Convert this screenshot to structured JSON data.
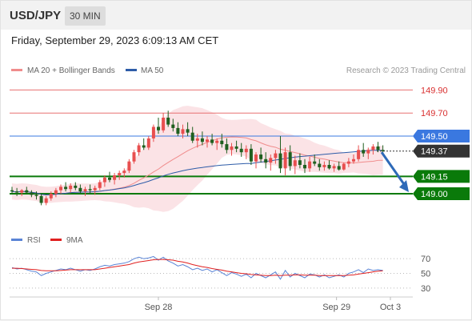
{
  "header": {
    "symbol": "USD/JPY",
    "interval": "30 MIN"
  },
  "timestamp": "Friday, September 29, 2023 6:09:13 AM CET",
  "legend": {
    "ma20_label": "MA 20 + Bollinger Bands",
    "ma50_label": "MA 50",
    "credit": "Research © 2023 Trading Central"
  },
  "colors": {
    "ma20": "#f08c8c",
    "ma50": "#2e5ca8",
    "band": "#fadadd",
    "up": "#e84f4f",
    "down": "#1f5f1f",
    "pivot": "#e87070",
    "resistance_blue": "#3a78e0",
    "support_green": "#0a7a0a",
    "arrow": "#2e6ab8",
    "rsi": "#5a84d6",
    "rsi_ma": "#e02020"
  },
  "chart_data": [
    {
      "type": "candlestick",
      "ylim": [
        148.75,
        150.0
      ],
      "x_ticks": [
        "Sep 28",
        "Sep 29",
        "Oct 3"
      ],
      "price_levels": [
        {
          "value": 149.9,
          "label": "149.90",
          "kind": "pivot"
        },
        {
          "value": 149.7,
          "label": "149.70",
          "kind": "pivot"
        },
        {
          "value": 149.5,
          "label": "149.50",
          "kind": "resistance"
        },
        {
          "value": 149.15,
          "label": "149.15",
          "kind": "support"
        },
        {
          "value": 149.0,
          "label": "149.00",
          "kind": "support"
        }
      ],
      "last_price": {
        "value": 149.37,
        "label": "149.37"
      },
      "forecast_target": 149.0,
      "candles": [
        [
          149.03,
          149.06,
          149.0,
          149.02
        ],
        [
          149.02,
          149.05,
          148.98,
          149.01
        ],
        [
          149.01,
          149.04,
          148.98,
          149.03
        ],
        [
          149.03,
          149.06,
          149.0,
          149.01
        ],
        [
          149.01,
          149.03,
          148.97,
          148.99
        ],
        [
          148.99,
          149.02,
          148.95,
          148.98
        ],
        [
          148.98,
          149.0,
          148.9,
          148.92
        ],
        [
          148.92,
          148.98,
          148.9,
          148.96
        ],
        [
          148.96,
          149.02,
          148.94,
          149.0
        ],
        [
          149.0,
          149.05,
          148.97,
          149.03
        ],
        [
          149.03,
          149.08,
          149.0,
          149.06
        ],
        [
          149.06,
          149.1,
          149.02,
          149.04
        ],
        [
          149.04,
          149.09,
          149.01,
          149.07
        ],
        [
          149.07,
          149.1,
          149.03,
          149.05
        ],
        [
          149.05,
          149.08,
          149.0,
          149.02
        ],
        [
          149.02,
          149.06,
          148.98,
          149.04
        ],
        [
          149.04,
          149.08,
          149.0,
          149.03
        ],
        [
          149.03,
          149.07,
          148.99,
          149.05
        ],
        [
          149.05,
          149.12,
          149.03,
          149.1
        ],
        [
          149.1,
          149.16,
          149.06,
          149.14
        ],
        [
          149.14,
          149.19,
          149.1,
          149.12
        ],
        [
          149.12,
          149.18,
          149.08,
          149.16
        ],
        [
          149.16,
          149.2,
          149.12,
          149.18
        ],
        [
          149.18,
          149.22,
          149.14,
          149.2
        ],
        [
          149.2,
          149.3,
          149.18,
          149.28
        ],
        [
          149.28,
          149.38,
          149.26,
          149.36
        ],
        [
          149.36,
          149.44,
          149.33,
          149.42
        ],
        [
          149.42,
          149.48,
          149.38,
          149.4
        ],
        [
          149.4,
          149.5,
          149.38,
          149.48
        ],
        [
          149.48,
          149.6,
          149.45,
          149.58
        ],
        [
          149.58,
          149.66,
          149.52,
          149.55
        ],
        [
          149.55,
          149.7,
          149.53,
          149.66
        ],
        [
          149.66,
          149.72,
          149.58,
          149.6
        ],
        [
          149.6,
          149.65,
          149.54,
          149.57
        ],
        [
          149.57,
          149.62,
          149.5,
          149.52
        ],
        [
          149.52,
          149.6,
          149.48,
          149.56
        ],
        [
          149.56,
          149.62,
          149.5,
          149.53
        ],
        [
          149.53,
          149.58,
          149.44,
          149.46
        ],
        [
          149.46,
          149.52,
          149.4,
          149.48
        ],
        [
          149.48,
          149.54,
          149.42,
          149.45
        ],
        [
          149.45,
          149.5,
          149.4,
          149.47
        ],
        [
          149.47,
          149.52,
          149.42,
          149.44
        ],
        [
          149.44,
          149.48,
          149.38,
          149.46
        ],
        [
          149.46,
          149.52,
          149.4,
          149.43
        ],
        [
          149.43,
          149.48,
          149.35,
          149.38
        ],
        [
          149.38,
          149.44,
          149.33,
          149.41
        ],
        [
          149.41,
          149.46,
          149.36,
          149.39
        ],
        [
          149.39,
          149.44,
          149.32,
          149.36
        ],
        [
          149.36,
          149.42,
          149.3,
          149.39
        ],
        [
          149.39,
          149.43,
          149.25,
          149.28
        ],
        [
          149.28,
          149.36,
          149.22,
          149.34
        ],
        [
          149.34,
          149.4,
          149.27,
          149.3
        ],
        [
          149.3,
          149.36,
          149.22,
          149.27
        ],
        [
          149.27,
          149.34,
          149.2,
          149.31
        ],
        [
          149.31,
          149.38,
          149.26,
          149.35
        ],
        [
          149.35,
          149.5,
          149.18,
          149.22
        ],
        [
          149.22,
          149.4,
          149.16,
          149.36
        ],
        [
          149.36,
          149.42,
          149.2,
          149.24
        ],
        [
          149.24,
          149.33,
          149.17,
          149.29
        ],
        [
          149.29,
          149.35,
          149.22,
          149.25
        ],
        [
          149.25,
          149.3,
          149.18,
          149.22
        ],
        [
          149.22,
          149.32,
          149.19,
          149.28
        ],
        [
          149.28,
          149.34,
          149.24,
          149.26
        ],
        [
          149.26,
          149.3,
          149.2,
          149.23
        ],
        [
          149.23,
          149.28,
          149.2,
          149.25
        ],
        [
          149.25,
          149.29,
          149.21,
          149.22
        ],
        [
          149.22,
          149.26,
          149.19,
          149.24
        ],
        [
          149.24,
          149.28,
          149.2,
          149.21
        ],
        [
          149.21,
          149.27,
          149.2,
          149.26
        ],
        [
          149.26,
          149.31,
          149.23,
          149.28
        ],
        [
          149.28,
          149.34,
          149.26,
          149.3
        ],
        [
          149.3,
          149.42,
          149.28,
          149.38
        ],
        [
          149.38,
          149.44,
          149.32,
          149.35
        ],
        [
          149.35,
          149.4,
          149.3,
          149.38
        ],
        [
          149.38,
          149.43,
          149.34,
          149.41
        ],
        [
          149.41,
          149.45,
          149.36,
          149.38
        ],
        [
          149.38,
          149.42,
          149.35,
          149.37
        ]
      ]
    },
    {
      "type": "line",
      "series": [
        {
          "name": "RSI",
          "values": [
            58,
            56,
            57,
            55,
            53,
            52,
            47,
            50,
            52,
            54,
            56,
            55,
            57,
            55,
            53,
            55,
            54,
            56,
            59,
            61,
            60,
            62,
            63,
            64,
            66,
            70,
            72,
            70,
            71,
            73,
            68,
            72,
            67,
            64,
            60,
            62,
            59,
            55,
            57,
            54,
            56,
            52,
            55,
            51,
            47,
            51,
            49,
            46,
            49,
            44,
            50,
            47,
            44,
            48,
            52,
            42,
            54,
            45,
            50,
            47,
            44,
            49,
            48,
            45,
            48,
            44,
            46,
            48,
            45,
            50,
            52,
            55,
            51,
            56,
            54,
            55,
            54
          ]
        },
        {
          "name": "9MA",
          "values": [
            57,
            57,
            56.5,
            56,
            55.5,
            55,
            54,
            53.5,
            53.5,
            53.5,
            54,
            54.5,
            55,
            55,
            55,
            55,
            55,
            55,
            56,
            57,
            58,
            59,
            60,
            61,
            62,
            64,
            65.5,
            66.5,
            67.5,
            68.5,
            69,
            69,
            68.5,
            68,
            66.5,
            65.5,
            64,
            62,
            60.5,
            59,
            58,
            56.5,
            55.5,
            54.5,
            53,
            52,
            51,
            50,
            49.5,
            48.5,
            48,
            47.5,
            47,
            47,
            47.5,
            47,
            47.5,
            47.5,
            48,
            48,
            47.5,
            47.5,
            47.5,
            47,
            47,
            47,
            47,
            47,
            47,
            47.5,
            48,
            49,
            50,
            51,
            52,
            53,
            53.5
          ]
        }
      ],
      "ylim": [
        20,
        80
      ],
      "y_ticks": [
        "70",
        "50",
        "30"
      ]
    }
  ]
}
